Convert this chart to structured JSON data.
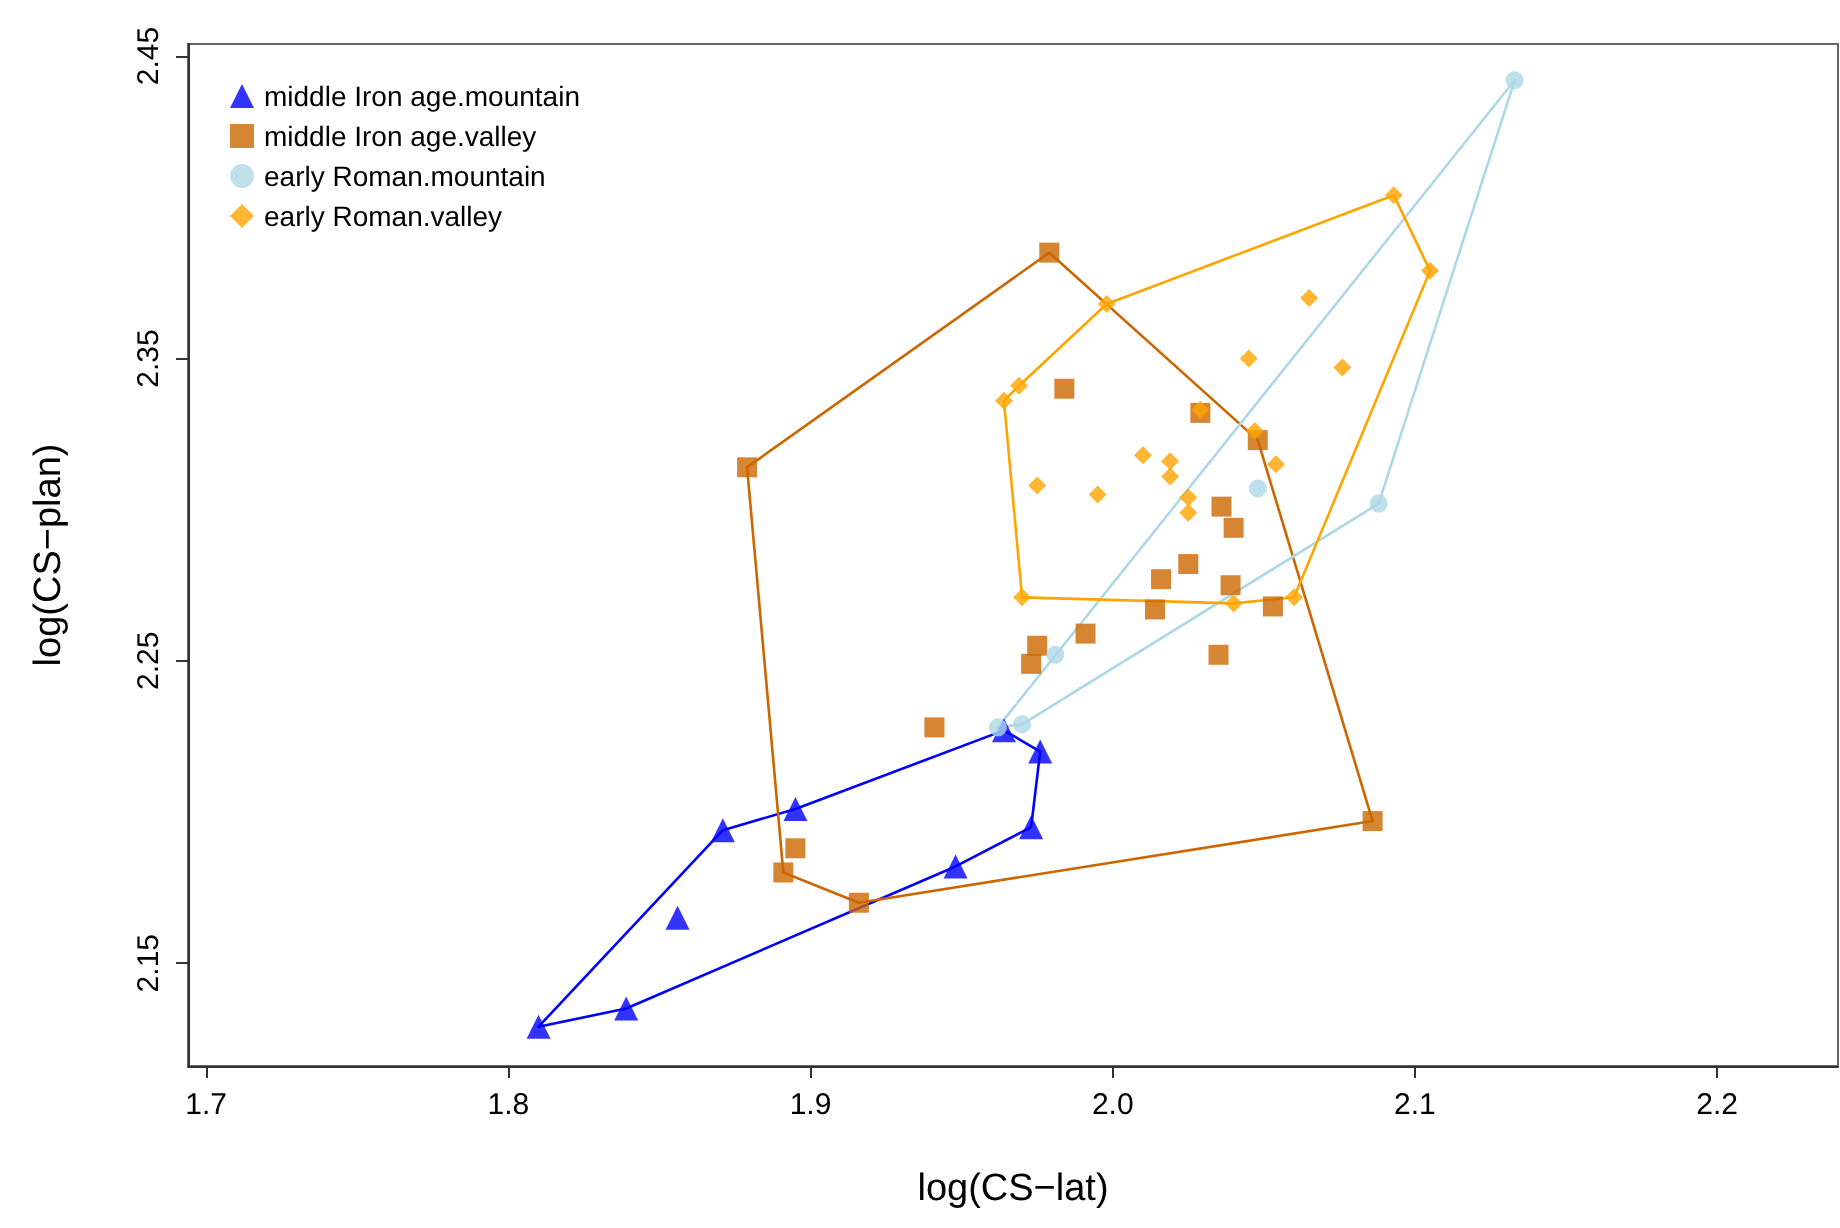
{
  "chart_data": {
    "type": "scatter",
    "xlabel": "log(CS−lat)",
    "ylabel": "log(CS−plan)",
    "xlim": [
      1.694,
      2.24
    ],
    "ylim": [
      2.116,
      2.454
    ],
    "xticks": [
      1.7,
      1.8,
      1.9,
      {
        "value": 2,
        "label": "2.0"
      },
      2.1,
      2.2
    ],
    "yticks": [
      2.15,
      2.25,
      2.35,
      2.45
    ],
    "grid": false,
    "legend": "top left",
    "series": [
      {
        "name": "middle Iron age.mountain",
        "color": "#0000ff",
        "marker": "triangle",
        "x": [
          1.81,
          1.839,
          1.856,
          1.871,
          1.895,
          1.948,
          1.964,
          1.976,
          1.973
        ],
        "values": [
          2.129,
          2.135,
          2.165,
          2.194,
          2.201,
          2.182,
          2.227,
          2.22,
          2.195
        ]
      },
      {
        "name": "middle Iron age.valley",
        "color": "#cc6600",
        "marker": "square",
        "x": [
          1.879,
          1.979,
          1.984,
          2.029,
          2.048,
          2.086,
          1.916,
          1.891,
          1.895,
          1.941,
          1.973,
          1.975,
          1.991,
          2.014,
          2.016,
          2.025,
          2.036,
          2.04,
          2.039,
          2.035,
          2.053
        ],
        "values": [
          2.314,
          2.385,
          2.34,
          2.332,
          2.323,
          2.197,
          2.17,
          2.18,
          2.188,
          2.228,
          2.249,
          2.255,
          2.259,
          2.267,
          2.277,
          2.282,
          2.301,
          2.294,
          2.275,
          2.252,
          2.268
        ]
      },
      {
        "name": "early Roman.mountain",
        "color": "#add8e6",
        "marker": "circle",
        "x": [
          2.133,
          2.088,
          2.048,
          1.981,
          1.97,
          1.962
        ],
        "values": [
          2.442,
          2.302,
          2.307,
          2.252,
          2.229,
          2.228
        ]
      },
      {
        "name": "early Roman.valley",
        "color": "#ffa500",
        "marker": "diamond",
        "x": [
          2.093,
          2.105,
          1.998,
          1.969,
          1.964,
          1.97,
          2.04,
          2.06,
          2.065,
          2.076,
          2.045,
          2.029,
          2.047,
          2.054,
          2.01,
          2.019,
          2.019,
          1.975,
          1.995,
          2.025,
          2.025
        ],
        "values": [
          2.404,
          2.379,
          2.368,
          2.341,
          2.336,
          2.271,
          2.269,
          2.271,
          2.37,
          2.347,
          2.35,
          2.333,
          2.326,
          2.315,
          2.318,
          2.316,
          2.311,
          2.308,
          2.305,
          2.304,
          2.299
        ]
      },
      {
        "type": "line",
        "color": "#0000ff",
        "marker": "none",
        "line_style": "solid",
        "x": [
          1.81,
          1.839,
          1.948,
          1.973,
          1.976
        ],
        "values": [
          2.129,
          2.135,
          2.182,
          2.195,
          2.22
        ]
      },
      {
        "type": "line",
        "color": "#0000ff",
        "marker": "none",
        "line_style": "solid",
        "x": [
          1.81,
          1.871,
          1.895,
          1.964,
          1.976
        ],
        "values": [
          2.129,
          2.194,
          2.201,
          2.227,
          2.22
        ]
      },
      {
        "type": "line",
        "color": "#cc6600",
        "marker": "none",
        "line_style": "solid",
        "x": [
          1.879,
          1.979,
          2.048,
          2.086
        ],
        "values": [
          2.314,
          2.385,
          2.323,
          2.197
        ]
      },
      {
        "type": "line",
        "color": "#cc6600",
        "marker": "none",
        "line_style": "solid",
        "x": [
          1.879,
          1.891,
          1.916,
          2.086
        ],
        "values": [
          2.314,
          2.18,
          2.17,
          2.197
        ]
      },
      {
        "type": "line",
        "color": "#add8e6",
        "marker": "none",
        "line_style": "solid",
        "x": [
          1.962,
          2.133
        ],
        "values": [
          2.228,
          2.442
        ]
      },
      {
        "type": "line",
        "color": "#add8e6",
        "marker": "none",
        "line_style": "solid",
        "x": [
          1.962,
          1.97,
          2.088,
          2.133
        ],
        "values": [
          2.228,
          2.229,
          2.302,
          2.442
        ]
      },
      {
        "type": "line",
        "color": "#ffa500",
        "marker": "none",
        "line_style": "solid",
        "x": [
          1.964,
          1.969,
          1.998,
          2.093,
          2.105
        ],
        "values": [
          2.336,
          2.341,
          2.368,
          2.404,
          2.379
        ]
      },
      {
        "type": "line",
        "color": "#ffa500",
        "marker": "none",
        "line_style": "solid",
        "x": [
          1.964,
          1.97,
          2.04,
          2.06,
          2.105
        ],
        "values": [
          2.336,
          2.271,
          2.269,
          2.271,
          2.379
        ]
      }
    ]
  }
}
